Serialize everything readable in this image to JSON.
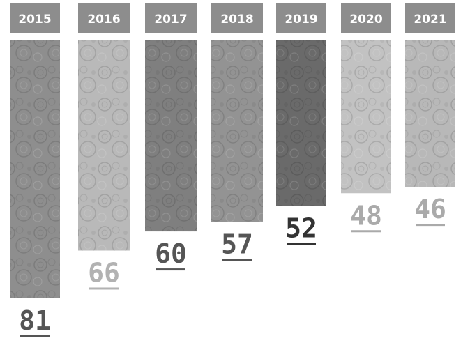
{
  "chart_data": {
    "type": "bar",
    "categories": [
      "2015",
      "2016",
      "2017",
      "2018",
      "2019",
      "2020",
      "2021"
    ],
    "values": [
      81,
      66,
      60,
      57,
      52,
      48,
      46
    ],
    "title": "",
    "xlabel": "",
    "ylabel": "",
    "grid": false,
    "legend": "none",
    "colors": {
      "header": "#8d8d8d",
      "bars": [
        "#8e8e8e",
        "#b9b9b9",
        "#7f7f7f",
        "#939393",
        "#6a6a6a",
        "#c2c2c2",
        "#b8b8b8"
      ],
      "labels": [
        "#555555",
        "#b2b2b2",
        "#555555",
        "#555555",
        "#333333",
        "#aaaaaa",
        "#aaaaaa"
      ]
    }
  }
}
